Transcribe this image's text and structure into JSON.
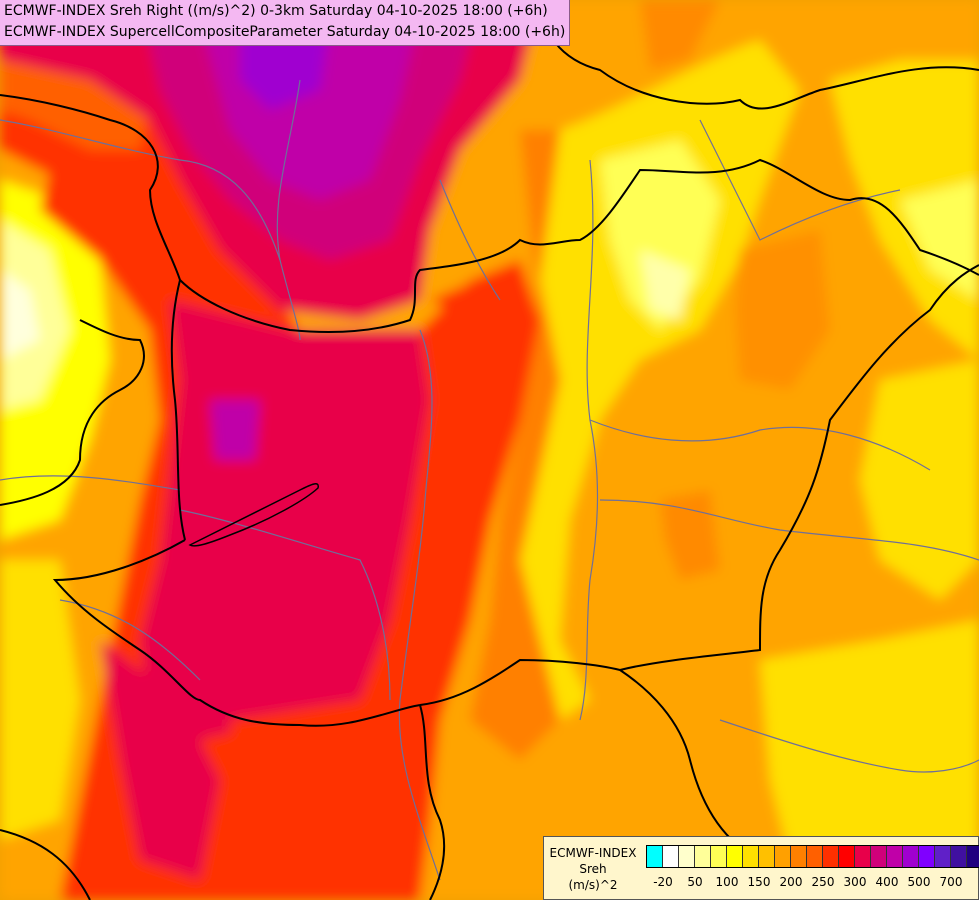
{
  "header": {
    "line1": "ECMWF-INDEX Sreh Right ((m/s)^2) 0-3km Saturday 04-10-2025 18:00 (+6h)",
    "line2": "ECMWF-INDEX SupercellCompositeParameter Saturday 04-10-2025 18:00 (+6h)"
  },
  "legend": {
    "line1": "ECMWF-INDEX",
    "line2": "Sreh",
    "line3": "(m/s)^2",
    "colors": [
      "#00ffff",
      "#ffffff",
      "#ffffcc",
      "#ffff99",
      "#ffff55",
      "#ffff00",
      "#ffe000",
      "#ffc000",
      "#ffa000",
      "#ff8000",
      "#ff6000",
      "#ff3000",
      "#ff0000",
      "#e8004a",
      "#d0007a",
      "#c000a8",
      "#a000d0",
      "#8000ff",
      "#6020c8",
      "#4010a0",
      "#200080"
    ],
    "ticks": [
      "-20",
      "50",
      "100",
      "150",
      "200",
      "250",
      "300",
      "400",
      "500",
      "700"
    ]
  },
  "map_colors": {
    "background": "#f0a000",
    "orange": "#ff8a00",
    "light_orange": "#ffc000",
    "yellow": "#ffe000",
    "pale_yellow": "#ffff66",
    "red": "#ff3000",
    "crimson": "#e8004a",
    "magenta": "#c000a8",
    "purple": "#9a10e0",
    "border": "#000000",
    "river": "#6f6f99"
  }
}
